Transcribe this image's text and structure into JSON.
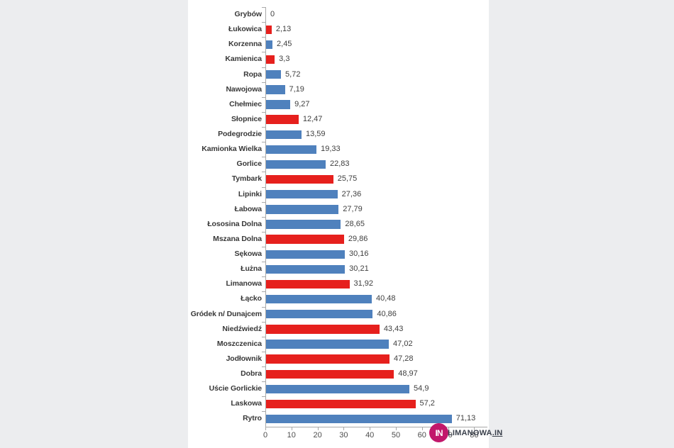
{
  "page": {
    "background_color": "#ecedef",
    "panel_background": "#ffffff"
  },
  "chart_data": {
    "type": "bar",
    "orientation": "horizontal",
    "title": "",
    "xlabel": "",
    "ylabel": "",
    "grid": false,
    "legend": null,
    "xlim": [
      0,
      80
    ],
    "x_ticks": [
      "0",
      "10",
      "20",
      "30",
      "40",
      "50",
      "60",
      "70",
      "80"
    ],
    "categories": [
      "Grybów",
      "Łukowica",
      "Korzenna",
      "Kamienica",
      "Ropa",
      "Nawojowa",
      "Chełmiec",
      "Słopnice",
      "Podegrodzie",
      "Kamionka Wielka",
      "Gorlice",
      "Tymbark",
      "Lipinki",
      "Łabowa",
      "Łososina Dolna",
      "Mszana Dolna",
      "Sękowa",
      "Łużna",
      "Limanowa",
      "Łącko",
      "Gródek n/ Dunajcem",
      "Niedźwiedź",
      "Moszczenica",
      "Jodłownik",
      "Dobra",
      "Uście Gorlickie",
      "Laskowa",
      "Rytro"
    ],
    "values": [
      0,
      2.13,
      2.45,
      3.3,
      5.72,
      7.19,
      9.27,
      12.47,
      13.59,
      19.33,
      22.83,
      25.75,
      27.36,
      27.79,
      28.65,
      29.86,
      30.16,
      30.21,
      31.92,
      40.48,
      40.86,
      43.43,
      47.02,
      47.28,
      48.97,
      54.9,
      57.2,
      71.13
    ],
    "value_labels": [
      "0",
      "2,13",
      "2,45",
      "3,3",
      "5,72",
      "7,19",
      "9,27",
      "12,47",
      "13,59",
      "19,33",
      "22,83",
      "25,75",
      "27,36",
      "27,79",
      "28,65",
      "29,86",
      "30,16",
      "30,21",
      "31,92",
      "40,48",
      "40,86",
      "43,43",
      "47,02",
      "47,28",
      "48,97",
      "54,9",
      "57,2",
      "71,13"
    ],
    "bar_color_keys": [
      "blue",
      "red",
      "blue",
      "red",
      "blue",
      "blue",
      "blue",
      "red",
      "blue",
      "blue",
      "blue",
      "red",
      "blue",
      "blue",
      "blue",
      "red",
      "blue",
      "blue",
      "red",
      "blue",
      "blue",
      "red",
      "blue",
      "red",
      "red",
      "blue",
      "red",
      "blue"
    ],
    "colors": {
      "blue": "#4f81bd",
      "red": "#e6201d",
      "axis": "#a9a9a9",
      "category_label": "#383838",
      "value_label": "#404040",
      "tick_label": "#4d4d4d"
    }
  },
  "watermark": {
    "circle_text": "IN",
    "text": "LIMANOWA",
    "suffix": ".IN",
    "circle_color": "#c2186b",
    "text_color": "#3b414c"
  }
}
